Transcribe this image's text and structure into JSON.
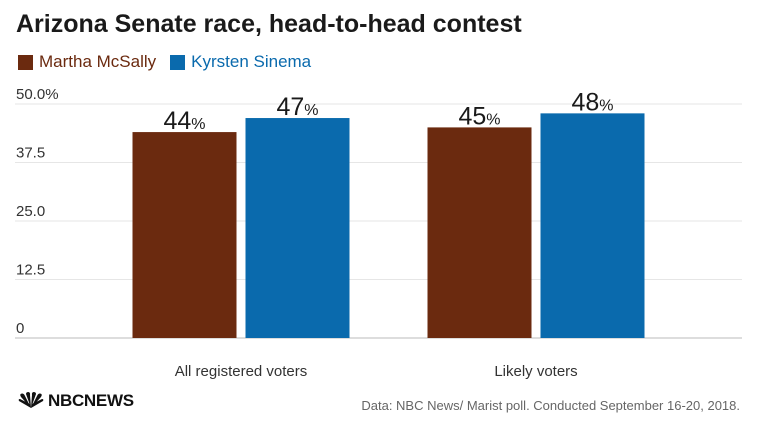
{
  "chart_data": {
    "type": "bar",
    "title": "Arizona Senate race, head-to-head contest",
    "categories": [
      "All registered voters",
      "Likely voters"
    ],
    "series": [
      {
        "name": "Martha McSally",
        "values": [
          44,
          45
        ],
        "color": "#6b2a0f"
      },
      {
        "name": "Kyrsten Sinema",
        "values": [
          47,
          48
        ],
        "color": "#0a6aad"
      }
    ],
    "ylim": [
      0,
      50
    ],
    "yticks": [
      0,
      12.5,
      25,
      37.5,
      50
    ],
    "ytick_labels": [
      "0",
      "12.5",
      "25.0",
      "37.5",
      "50.0%"
    ],
    "value_suffix": "%",
    "grid": true,
    "legend_position": "top-left"
  },
  "logo": {
    "text": "NBCNEWS",
    "icon": "peacock-icon"
  },
  "source": "Data: NBC News/ Marist poll. Conducted September 16-20, 2018."
}
